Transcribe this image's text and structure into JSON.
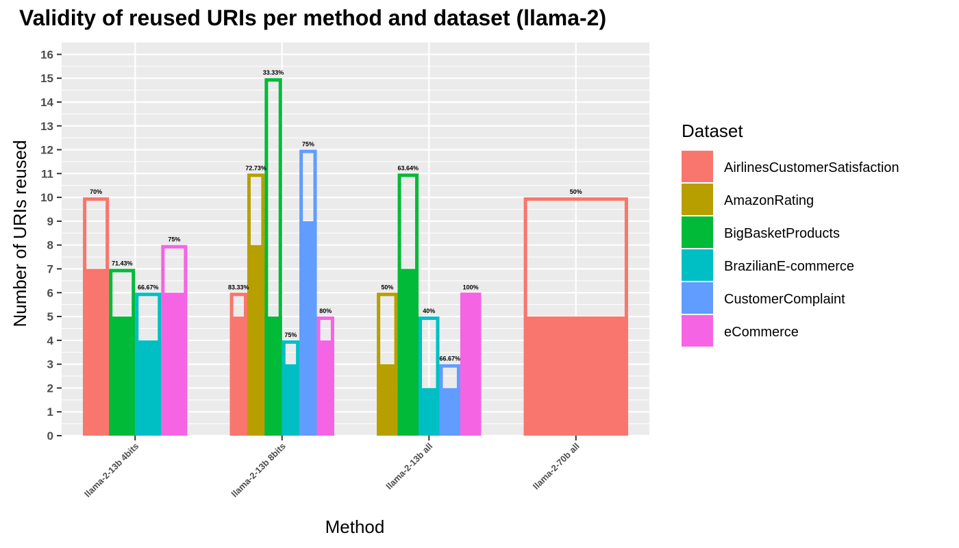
{
  "chart_data": {
    "type": "bar",
    "title": "Validity of reused URIs per method and dataset (llama-2)",
    "xlabel": "Method",
    "ylabel": "Number of URIs reused",
    "ylim": [
      0,
      16.5
    ],
    "y_ticks": [
      0,
      1,
      2,
      3,
      4,
      5,
      6,
      7,
      8,
      9,
      10,
      11,
      12,
      13,
      14,
      15,
      16
    ],
    "grid": true,
    "legend_title": "Dataset",
    "legend_position": "right",
    "categories": [
      "llama-2-13b 4bits",
      "llama-2-13b 8bits",
      "llama-2-13b all",
      "llama-2-70b all"
    ],
    "series": [
      {
        "name": "AirlinesCustomerSatisfaction",
        "color": "#F8766D"
      },
      {
        "name": "AmazonRating",
        "color": "#B79F00"
      },
      {
        "name": "BigBasketProducts",
        "color": "#00BA38"
      },
      {
        "name": "BrazilianE-commerce",
        "color": "#00BFC4"
      },
      {
        "name": "CustomerComplaint",
        "color": "#619CFF"
      },
      {
        "name": "eCommerce",
        "color": "#F564E3"
      }
    ],
    "groups": [
      {
        "category": "llama-2-13b 4bits",
        "bars": [
          {
            "series": "AirlinesCustomerSatisfaction",
            "total": 10,
            "valid": 7,
            "label": "70%"
          },
          {
            "series": "BigBasketProducts",
            "total": 7,
            "valid": 5,
            "label": "71.43%"
          },
          {
            "series": "BrazilianE-commerce",
            "total": 6,
            "valid": 4,
            "label": "66.67%"
          },
          {
            "series": "eCommerce",
            "total": 8,
            "valid": 6,
            "label": "75%"
          }
        ]
      },
      {
        "category": "llama-2-13b 8bits",
        "bars": [
          {
            "series": "AirlinesCustomerSatisfaction",
            "total": 6,
            "valid": 5,
            "label": "83.33%"
          },
          {
            "series": "AmazonRating",
            "total": 11,
            "valid": 8,
            "label": "72.73%"
          },
          {
            "series": "BigBasketProducts",
            "total": 15,
            "valid": 5,
            "label": "33.33%"
          },
          {
            "series": "BrazilianE-commerce",
            "total": 4,
            "valid": 3,
            "label": "75%"
          },
          {
            "series": "CustomerComplaint",
            "total": 12,
            "valid": 9,
            "label": "75%"
          },
          {
            "series": "eCommerce",
            "total": 5,
            "valid": 4,
            "label": "80%"
          }
        ]
      },
      {
        "category": "llama-2-13b all",
        "bars": [
          {
            "series": "AmazonRating",
            "total": 6,
            "valid": 3,
            "label": "50%"
          },
          {
            "series": "BigBasketProducts",
            "total": 11,
            "valid": 7,
            "label": "63.64%"
          },
          {
            "series": "BrazilianE-commerce",
            "total": 5,
            "valid": 2,
            "label": "40%"
          },
          {
            "series": "CustomerComplaint",
            "total": 3,
            "valid": 2,
            "label": "66.67%"
          },
          {
            "series": "eCommerce",
            "total": 6,
            "valid": 6,
            "label": "100%"
          }
        ]
      },
      {
        "category": "llama-2-70b all",
        "bars": [
          {
            "series": "AirlinesCustomerSatisfaction",
            "total": 10,
            "valid": 5,
            "label": "50%"
          }
        ]
      }
    ]
  }
}
